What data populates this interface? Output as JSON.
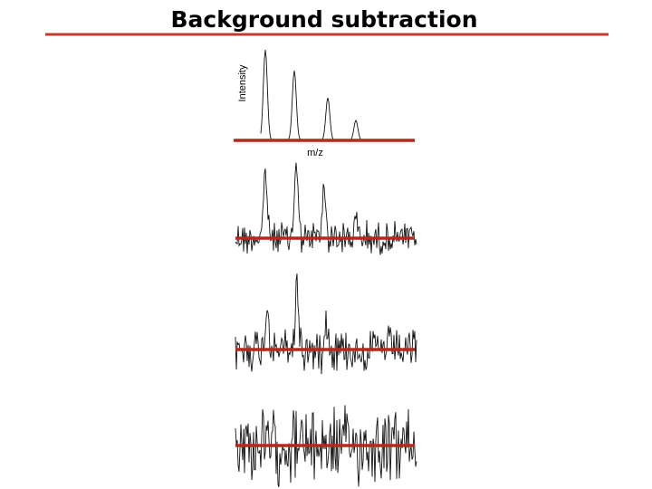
{
  "header": {
    "title": "Background subtraction"
  },
  "spectrum": {
    "y_label": "Intensity",
    "x_label": "m/z"
  }
}
